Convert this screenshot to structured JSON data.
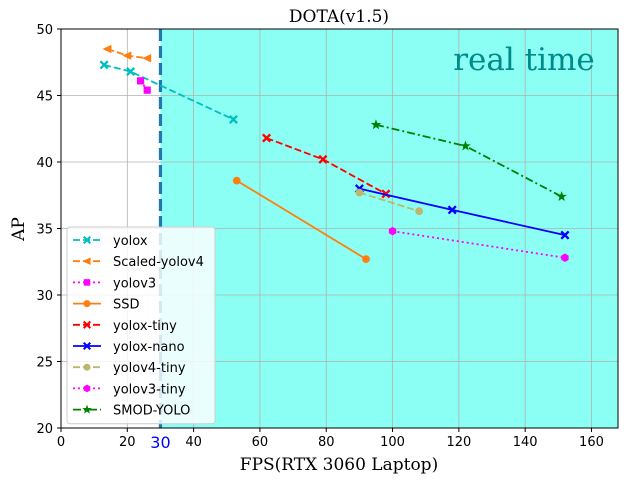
{
  "chart_data": {
    "type": "line",
    "title": "DOTA(v1.5)",
    "xlabel": "FPS(RTX 3060 Laptop)",
    "ylabel": "AP",
    "xlim": [
      0,
      168
    ],
    "ylim": [
      20,
      50
    ],
    "xticks": [
      0,
      20,
      40,
      60,
      80,
      100,
      120,
      140,
      160
    ],
    "yticks": [
      20,
      25,
      30,
      35,
      40,
      45,
      50
    ],
    "grid": true,
    "legend_position": "lower-left",
    "annotation": {
      "text": "real time",
      "color": "#008b8b"
    },
    "threshold": {
      "x": 30,
      "label": "30",
      "line_color": "#1f77b4",
      "label_color": "#0000ff",
      "shade_color": "#8cfff5",
      "shade_from_x": 30
    },
    "series": [
      {
        "name": "yolox",
        "color": "#00bfbf",
        "dash": "dashed",
        "marker": "X",
        "points": [
          [
            13,
            47.3
          ],
          [
            21,
            46.8
          ],
          [
            52,
            43.2
          ]
        ]
      },
      {
        "name": "Scaled-yolov4",
        "color": "#ff7f0e",
        "dash": "dashed",
        "marker": "<",
        "points": [
          [
            14,
            48.5
          ],
          [
            20,
            48.0
          ],
          [
            26,
            47.8
          ]
        ]
      },
      {
        "name": "yolov3",
        "color": "#ff00ff",
        "dash": "dotted",
        "marker": "s",
        "points": [
          [
            24,
            46.1
          ],
          [
            26,
            45.4
          ]
        ]
      },
      {
        "name": "SSD",
        "color": "#ff7f0e",
        "dash": "solid",
        "marker": "o",
        "points": [
          [
            53,
            38.6
          ],
          [
            92,
            32.7
          ]
        ]
      },
      {
        "name": "yolox-tiny",
        "color": "#ff0000",
        "dash": "dashed",
        "marker": "X",
        "points": [
          [
            62,
            41.8
          ],
          [
            79,
            40.2
          ],
          [
            98,
            37.6
          ]
        ]
      },
      {
        "name": "yolox-nano",
        "color": "#0000ff",
        "dash": "solid",
        "marker": "X",
        "points": [
          [
            90,
            38.0
          ],
          [
            118,
            36.4
          ],
          [
            152,
            34.5
          ]
        ]
      },
      {
        "name": "yolov4-tiny",
        "color": "#bdb76b",
        "dash": "dashed",
        "marker": "o",
        "points": [
          [
            90,
            37.7
          ],
          [
            108,
            36.3
          ]
        ]
      },
      {
        "name": "yolov3-tiny",
        "color": "#ff00ff",
        "dash": "dotted",
        "marker": "h",
        "points": [
          [
            100,
            34.8
          ],
          [
            152,
            32.8
          ]
        ]
      },
      {
        "name": "SMOD-YOLO",
        "color": "#008000",
        "dash": "dashdot",
        "marker": "*",
        "points": [
          [
            95,
            42.8
          ],
          [
            122,
            41.2
          ],
          [
            151,
            37.4
          ]
        ]
      }
    ]
  }
}
